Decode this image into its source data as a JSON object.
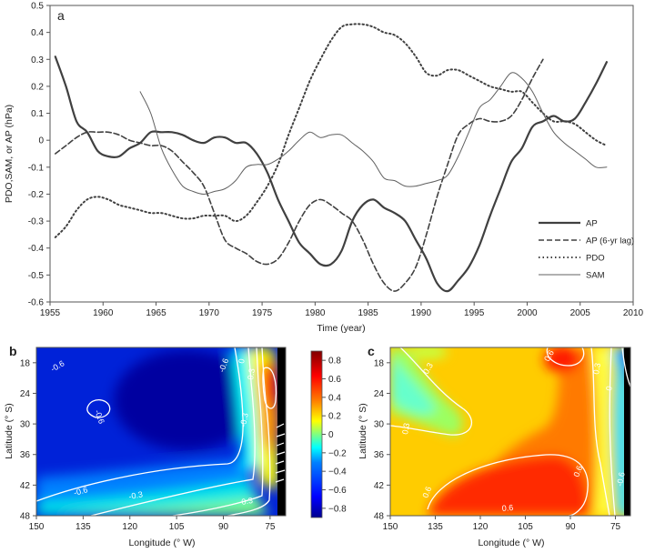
{
  "chart_data": [
    {
      "panel": "a",
      "type": "line",
      "xlabel": "Time (year)",
      "ylabel": "PDO,SAM, or AP (hPa)",
      "xlim": [
        1955,
        2010
      ],
      "ylim": [
        -0.6,
        0.5
      ],
      "xticks": [
        "1955",
        "1960",
        "1965",
        "1970",
        "1975",
        "1980",
        "1985",
        "1990",
        "1995",
        "2000",
        "2005",
        "2010"
      ],
      "yticks": [
        "0.5",
        "0.4",
        "0.3",
        "0.2",
        "0.1",
        "0",
        "-0.1",
        "-0.2",
        "-0.3",
        "-0.4",
        "-0.5",
        "-0.6"
      ],
      "legend_position": "lower-right",
      "series": [
        {
          "name": "AP",
          "style": "solid-thick",
          "color": "#404040",
          "points": [
            [
              1955.5,
              0.31
            ],
            [
              1956.5,
              0.2
            ],
            [
              1957.5,
              0.07
            ],
            [
              1958.5,
              0.03
            ],
            [
              1959.5,
              -0.04
            ],
            [
              1960.5,
              -0.06
            ],
            [
              1961.5,
              -0.06
            ],
            [
              1962.5,
              -0.03
            ],
            [
              1963.5,
              -0.01
            ],
            [
              1964.5,
              0.03
            ],
            [
              1965.5,
              0.03
            ],
            [
              1966.5,
              0.03
            ],
            [
              1967.5,
              0.02
            ],
            [
              1968.5,
              0.0
            ],
            [
              1969.5,
              -0.01
            ],
            [
              1970.5,
              0.01
            ],
            [
              1971.5,
              0.01
            ],
            [
              1972.5,
              -0.01
            ],
            [
              1973.5,
              -0.01
            ],
            [
              1974.5,
              -0.05
            ],
            [
              1975.5,
              -0.12
            ],
            [
              1976.5,
              -0.22
            ],
            [
              1977.5,
              -0.3
            ],
            [
              1978.5,
              -0.38
            ],
            [
              1979.5,
              -0.42
            ],
            [
              1980.5,
              -0.46
            ],
            [
              1981.5,
              -0.46
            ],
            [
              1982.5,
              -0.41
            ],
            [
              1983.5,
              -0.3
            ],
            [
              1984.5,
              -0.24
            ],
            [
              1985.5,
              -0.22
            ],
            [
              1986.5,
              -0.25
            ],
            [
              1987.5,
              -0.27
            ],
            [
              1988.5,
              -0.3
            ],
            [
              1989.5,
              -0.37
            ],
            [
              1990.5,
              -0.44
            ],
            [
              1991.5,
              -0.53
            ],
            [
              1992.5,
              -0.56
            ],
            [
              1993.5,
              -0.52
            ],
            [
              1994.5,
              -0.47
            ],
            [
              1995.5,
              -0.39
            ],
            [
              1996.5,
              -0.28
            ],
            [
              1997.5,
              -0.18
            ],
            [
              1998.5,
              -0.08
            ],
            [
              1999.5,
              -0.03
            ],
            [
              2000.5,
              0.05
            ],
            [
              2001.5,
              0.07
            ],
            [
              2002.5,
              0.09
            ],
            [
              2003.5,
              0.07
            ],
            [
              2004.5,
              0.08
            ],
            [
              2005.5,
              0.14
            ],
            [
              2006.5,
              0.21
            ],
            [
              2007.5,
              0.29
            ]
          ]
        },
        {
          "name": "AP (6-yr lag)",
          "style": "dashed",
          "color": "#404040",
          "points": [
            [
              1955.5,
              -0.05
            ],
            [
              1956.5,
              -0.02
            ],
            [
              1957.5,
              0.01
            ],
            [
              1958.5,
              0.03
            ],
            [
              1959.5,
              0.03
            ],
            [
              1960.5,
              0.03
            ],
            [
              1961.5,
              0.02
            ],
            [
              1962.5,
              0.0
            ],
            [
              1963.5,
              -0.01
            ],
            [
              1964.5,
              -0.02
            ],
            [
              1965.5,
              -0.02
            ],
            [
              1966.5,
              -0.04
            ],
            [
              1967.5,
              -0.08
            ],
            [
              1968.5,
              -0.12
            ],
            [
              1969.5,
              -0.17
            ],
            [
              1970.5,
              -0.27
            ],
            [
              1971.5,
              -0.37
            ],
            [
              1972.5,
              -0.4
            ],
            [
              1973.5,
              -0.42
            ],
            [
              1974.5,
              -0.45
            ],
            [
              1975.5,
              -0.46
            ],
            [
              1976.5,
              -0.44
            ],
            [
              1977.5,
              -0.38
            ],
            [
              1978.5,
              -0.3
            ],
            [
              1979.5,
              -0.24
            ],
            [
              1980.5,
              -0.22
            ],
            [
              1981.5,
              -0.24
            ],
            [
              1982.5,
              -0.27
            ],
            [
              1983.5,
              -0.3
            ],
            [
              1984.5,
              -0.37
            ],
            [
              1985.5,
              -0.46
            ],
            [
              1986.5,
              -0.53
            ],
            [
              1987.5,
              -0.56
            ],
            [
              1988.5,
              -0.53
            ],
            [
              1989.5,
              -0.47
            ],
            [
              1990.5,
              -0.35
            ],
            [
              1991.5,
              -0.21
            ],
            [
              1992.5,
              -0.09
            ],
            [
              1993.5,
              0.02
            ],
            [
              1994.5,
              0.06
            ],
            [
              1995.5,
              0.08
            ],
            [
              1996.5,
              0.07
            ],
            [
              1997.5,
              0.07
            ],
            [
              1998.5,
              0.09
            ],
            [
              1999.5,
              0.15
            ],
            [
              2000.5,
              0.23
            ],
            [
              2001.5,
              0.3
            ]
          ]
        },
        {
          "name": "PDO",
          "style": "dotted",
          "color": "#404040",
          "points": [
            [
              1955.5,
              -0.36
            ],
            [
              1956.5,
              -0.32
            ],
            [
              1957.5,
              -0.26
            ],
            [
              1958.5,
              -0.22
            ],
            [
              1959.5,
              -0.21
            ],
            [
              1960.5,
              -0.22
            ],
            [
              1961.5,
              -0.24
            ],
            [
              1962.5,
              -0.25
            ],
            [
              1963.5,
              -0.26
            ],
            [
              1964.5,
              -0.27
            ],
            [
              1965.5,
              -0.27
            ],
            [
              1966.5,
              -0.28
            ],
            [
              1967.5,
              -0.29
            ],
            [
              1968.5,
              -0.29
            ],
            [
              1969.5,
              -0.28
            ],
            [
              1970.5,
              -0.28
            ],
            [
              1971.5,
              -0.28
            ],
            [
              1972.5,
              -0.3
            ],
            [
              1973.5,
              -0.28
            ],
            [
              1974.5,
              -0.23
            ],
            [
              1975.5,
              -0.17
            ],
            [
              1976.5,
              -0.09
            ],
            [
              1977.5,
              0.02
            ],
            [
              1978.5,
              0.12
            ],
            [
              1979.5,
              0.22
            ],
            [
              1980.5,
              0.3
            ],
            [
              1981.5,
              0.37
            ],
            [
              1982.5,
              0.42
            ],
            [
              1983.5,
              0.43
            ],
            [
              1984.5,
              0.43
            ],
            [
              1985.5,
              0.42
            ],
            [
              1986.5,
              0.4
            ],
            [
              1987.5,
              0.39
            ],
            [
              1988.5,
              0.36
            ],
            [
              1989.5,
              0.31
            ],
            [
              1990.5,
              0.25
            ],
            [
              1991.5,
              0.24
            ],
            [
              1992.5,
              0.26
            ],
            [
              1993.5,
              0.26
            ],
            [
              1994.5,
              0.24
            ],
            [
              1995.5,
              0.22
            ],
            [
              1996.5,
              0.2
            ],
            [
              1997.5,
              0.19
            ],
            [
              1998.5,
              0.18
            ],
            [
              1999.5,
              0.18
            ],
            [
              2000.5,
              0.14
            ],
            [
              2001.5,
              0.1
            ],
            [
              2002.5,
              0.07
            ],
            [
              2003.5,
              0.07
            ],
            [
              2004.5,
              0.06
            ],
            [
              2005.5,
              0.03
            ],
            [
              2006.5,
              0.0
            ],
            [
              2007.5,
              -0.02
            ]
          ]
        },
        {
          "name": "SAM",
          "style": "solid-thin",
          "color": "#606060",
          "points": [
            [
              1963.5,
              0.18
            ],
            [
              1964.5,
              0.1
            ],
            [
              1965.5,
              -0.03
            ],
            [
              1966.5,
              -0.11
            ],
            [
              1967.5,
              -0.17
            ],
            [
              1968.5,
              -0.19
            ],
            [
              1969.5,
              -0.2
            ],
            [
              1970.5,
              -0.19
            ],
            [
              1971.5,
              -0.18
            ],
            [
              1972.5,
              -0.15
            ],
            [
              1973.5,
              -0.1
            ],
            [
              1974.5,
              -0.09
            ],
            [
              1975.5,
              -0.09
            ],
            [
              1976.5,
              -0.07
            ],
            [
              1977.5,
              -0.04
            ],
            [
              1978.5,
              0.0
            ],
            [
              1979.5,
              0.03
            ],
            [
              1980.5,
              0.01
            ],
            [
              1981.5,
              0.02
            ],
            [
              1982.5,
              0.02
            ],
            [
              1983.5,
              -0.01
            ],
            [
              1984.5,
              -0.04
            ],
            [
              1985.5,
              -0.08
            ],
            [
              1986.5,
              -0.14
            ],
            [
              1987.5,
              -0.15
            ],
            [
              1988.5,
              -0.17
            ],
            [
              1989.5,
              -0.17
            ],
            [
              1990.5,
              -0.16
            ],
            [
              1991.5,
              -0.15
            ],
            [
              1992.5,
              -0.13
            ],
            [
              1993.5,
              -0.06
            ],
            [
              1994.5,
              0.03
            ],
            [
              1995.5,
              0.12
            ],
            [
              1996.5,
              0.15
            ],
            [
              1997.5,
              0.2
            ],
            [
              1998.5,
              0.25
            ],
            [
              1999.5,
              0.23
            ],
            [
              2000.5,
              0.18
            ],
            [
              2001.5,
              0.1
            ],
            [
              2002.5,
              0.03
            ],
            [
              2003.5,
              -0.01
            ],
            [
              2004.5,
              -0.04
            ],
            [
              2005.5,
              -0.07
            ],
            [
              2006.5,
              -0.1
            ],
            [
              2007.5,
              -0.1
            ]
          ]
        }
      ]
    },
    {
      "panel": "b",
      "type": "heatmap",
      "xlabel": "Longitude (° W)",
      "ylabel": "Latitude (° S)",
      "xlim": [
        150,
        70
      ],
      "ylim": [
        48,
        15
      ],
      "xticks": [
        "150",
        "135",
        "120",
        "105",
        "90",
        "75"
      ],
      "yticks": [
        "18",
        "24",
        "30",
        "36",
        "42",
        "48"
      ],
      "contour_labels": [
        "-0.6",
        "-0.6",
        "-0.6",
        "-0.6",
        "-0.3",
        "0",
        "0.3",
        "-0.3",
        "0.3"
      ],
      "colorbar": {
        "range": [
          -0.9,
          0.9
        ],
        "ticks": [
          "0.8",
          "0.6",
          "0.4",
          "0.2",
          "0",
          "−0.2",
          "−0.4",
          "−0.6",
          "−0.8"
        ]
      },
      "description_colors": [
        "#00008f",
        "#0000ff",
        "#0080ff",
        "#00ffff",
        "#80ff80",
        "#ffff00",
        "#ff8000",
        "#ff0000",
        "#800000"
      ]
    },
    {
      "panel": "c",
      "type": "heatmap",
      "xlabel": "Longitude (° W)",
      "ylabel": "Latitude (° S)",
      "xlim": [
        150,
        70
      ],
      "ylim": [
        48,
        15
      ],
      "xticks": [
        "150",
        "135",
        "120",
        "105",
        "90",
        "75"
      ],
      "yticks": [
        "18",
        "24",
        "30",
        "36",
        "42",
        "48"
      ],
      "contour_labels": [
        "0.6",
        "0.3",
        "0.3",
        "0.6",
        "0.6",
        "0.6",
        "0.3",
        "0",
        "-0.6"
      ]
    }
  ],
  "panel_labels": {
    "a": "a",
    "b": "b",
    "c": "c"
  }
}
